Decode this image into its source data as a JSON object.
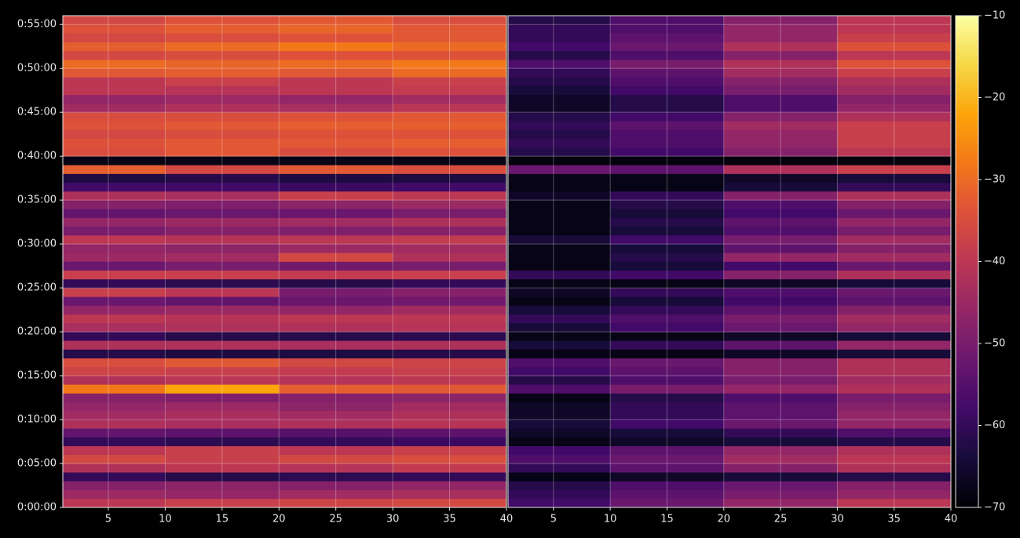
{
  "chart_data": {
    "type": "heatmap",
    "ylim": [
      0,
      3360
    ],
    "yticks": [
      {
        "value": 0,
        "label": "0:00:00"
      },
      {
        "value": 300,
        "label": "0:05:00"
      },
      {
        "value": 600,
        "label": "0:10:00"
      },
      {
        "value": 900,
        "label": "0:15:00"
      },
      {
        "value": 1200,
        "label": "0:20:00"
      },
      {
        "value": 1500,
        "label": "0:25:00"
      },
      {
        "value": 1800,
        "label": "0:30:00"
      },
      {
        "value": 2100,
        "label": "0:35:00"
      },
      {
        "value": 2400,
        "label": "0:40:00"
      },
      {
        "value": 2700,
        "label": "0:45:00"
      },
      {
        "value": 3000,
        "label": "0:50:00"
      },
      {
        "value": 3300,
        "label": "0:55:00"
      }
    ],
    "ybins": [
      0,
      60,
      120,
      180,
      240,
      300,
      360,
      420,
      480,
      540,
      600,
      660,
      720,
      780,
      840,
      900,
      960,
      1020,
      1080,
      1140,
      1200,
      1260,
      1320,
      1380,
      1440,
      1500,
      1560,
      1620,
      1680,
      1740,
      1800,
      1860,
      1920,
      1980,
      2040,
      2100,
      2160,
      2220,
      2280,
      2340,
      2400,
      2460,
      2520,
      2580,
      2640,
      2700,
      2760,
      2820,
      2880,
      2940,
      3000,
      3060,
      3120,
      3180,
      3240,
      3300,
      3360
    ],
    "grid": true,
    "colormap": "inferno",
    "colorbar": {
      "lim": [
        -70,
        -10
      ],
      "ticks": [
        {
          "value": -70,
          "label": "−70"
        },
        {
          "value": -60,
          "label": "−60"
        },
        {
          "value": -50,
          "label": "−50"
        },
        {
          "value": -40,
          "label": "−40"
        },
        {
          "value": -30,
          "label": "−30"
        },
        {
          "value": -20,
          "label": "−20"
        },
        {
          "value": -10,
          "label": "−10"
        }
      ]
    },
    "panels": [
      {
        "xlim": [
          1,
          40
        ],
        "xticks": [
          5,
          10,
          15,
          20,
          25,
          30,
          35,
          40
        ],
        "xbins": [
          1,
          10,
          20,
          30,
          40
        ],
        "values": [
          [
            -40,
            -38,
            -37,
            -36
          ],
          [
            -45,
            -46,
            -44,
            -43
          ],
          [
            -48,
            -47,
            -48,
            -46
          ],
          [
            -60,
            -62,
            -61,
            -60
          ],
          [
            -42,
            -40,
            -41,
            -39
          ],
          [
            -36,
            -38,
            -36,
            -35
          ],
          [
            -40,
            -38,
            -40,
            -38
          ],
          [
            -60,
            -61,
            -60,
            -59
          ],
          [
            -53,
            -54,
            -55,
            -54
          ],
          [
            -42,
            -43,
            -42,
            -41
          ],
          [
            -44,
            -43,
            -44,
            -42
          ],
          [
            -46,
            -45,
            -47,
            -44
          ],
          [
            -48,
            -49,
            -48,
            -47
          ],
          [
            -28,
            -22,
            -32,
            -33
          ],
          [
            -42,
            -40,
            -41,
            -40
          ],
          [
            -37,
            -38,
            -39,
            -38
          ],
          [
            -35,
            -33,
            -36,
            -37
          ],
          [
            -62,
            -63,
            -63,
            -62
          ],
          [
            -42,
            -42,
            -43,
            -42
          ],
          [
            -60,
            -62,
            -62,
            -61
          ],
          [
            -43,
            -42,
            -42,
            -41
          ],
          [
            -40,
            -41,
            -40,
            -40
          ],
          [
            -46,
            -45,
            -46,
            -44
          ],
          [
            -52,
            -53,
            -52,
            -51
          ],
          [
            -38,
            -40,
            -50,
            -48
          ],
          [
            -60,
            -61,
            -62,
            -60
          ],
          [
            -38,
            -38,
            -39,
            -38
          ],
          [
            -52,
            -50,
            -51,
            -50
          ],
          [
            -45,
            -44,
            -36,
            -42
          ],
          [
            -46,
            -47,
            -45,
            -44
          ],
          [
            -40,
            -41,
            -40,
            -39
          ],
          [
            -50,
            -48,
            -49,
            -48
          ],
          [
            -46,
            -45,
            -44,
            -42
          ],
          [
            -53,
            -52,
            -52,
            -50
          ],
          [
            -48,
            -49,
            -47,
            -45
          ],
          [
            -42,
            -43,
            -38,
            -40
          ],
          [
            -58,
            -58,
            -59,
            -58
          ],
          [
            -63,
            -62,
            -63,
            -63
          ],
          [
            -32,
            -36,
            -33,
            -35
          ],
          [
            -68,
            -68,
            -68,
            -68
          ],
          [
            -35,
            -33,
            -35,
            -34
          ],
          [
            -34,
            -33,
            -33,
            -32
          ],
          [
            -36,
            -35,
            -34,
            -34
          ],
          [
            -34,
            -33,
            -32,
            -32
          ],
          [
            -35,
            -35,
            -34,
            -33
          ],
          [
            -44,
            -42,
            -43,
            -40
          ],
          [
            -46,
            -45,
            -46,
            -44
          ],
          [
            -40,
            -41,
            -40,
            -39
          ],
          [
            -40,
            -38,
            -40,
            -38
          ],
          [
            -33,
            -32,
            -33,
            -30
          ],
          [
            -30,
            -31,
            -30,
            -28
          ],
          [
            -36,
            -35,
            -34,
            -34
          ],
          [
            -32,
            -30,
            -28,
            -30
          ],
          [
            -36,
            -35,
            -34,
            -33
          ],
          [
            -34,
            -32,
            -31,
            -33
          ],
          [
            -36,
            -34,
            -33,
            -35
          ]
        ]
      },
      {
        "xlim": [
          1,
          40
        ],
        "xticks": [
          5,
          10,
          15,
          20,
          25,
          30,
          35,
          40
        ],
        "xbins": [
          1,
          10,
          20,
          30,
          40
        ],
        "values": [
          [
            -58,
            -52,
            -46,
            -40
          ],
          [
            -60,
            -54,
            -50,
            -46
          ],
          [
            -62,
            -56,
            -52,
            -48
          ],
          [
            -68,
            -66,
            -64,
            -62
          ],
          [
            -60,
            -54,
            -48,
            -42
          ],
          [
            -56,
            -52,
            -44,
            -40
          ],
          [
            -58,
            -54,
            -46,
            -42
          ],
          [
            -68,
            -66,
            -64,
            -62
          ],
          [
            -66,
            -64,
            -60,
            -56
          ],
          [
            -64,
            -58,
            -52,
            -46
          ],
          [
            -66,
            -60,
            -54,
            -46
          ],
          [
            -66,
            -60,
            -54,
            -48
          ],
          [
            -68,
            -62,
            -56,
            -50
          ],
          [
            -56,
            -50,
            -46,
            -42
          ],
          [
            -62,
            -56,
            -50,
            -44
          ],
          [
            -58,
            -54,
            -48,
            -42
          ],
          [
            -56,
            -52,
            -48,
            -42
          ],
          [
            -68,
            -68,
            -66,
            -64
          ],
          [
            -64,
            -60,
            -54,
            -46
          ],
          [
            -68,
            -68,
            -66,
            -64
          ],
          [
            -64,
            -58,
            -52,
            -46
          ],
          [
            -60,
            -56,
            -50,
            -44
          ],
          [
            -64,
            -60,
            -54,
            -48
          ],
          [
            -68,
            -64,
            -58,
            -54
          ],
          [
            -66,
            -60,
            -56,
            -52
          ],
          [
            -68,
            -68,
            -66,
            -64
          ],
          [
            -60,
            -58,
            -48,
            -42
          ],
          [
            -68,
            -64,
            -58,
            -52
          ],
          [
            -68,
            -62,
            -46,
            -44
          ],
          [
            -68,
            -64,
            -54,
            -48
          ],
          [
            -64,
            -58,
            -50,
            -44
          ],
          [
            -68,
            -64,
            -56,
            -50
          ],
          [
            -68,
            -62,
            -54,
            -46
          ],
          [
            -68,
            -64,
            -58,
            -52
          ],
          [
            -68,
            -62,
            -56,
            -48
          ],
          [
            -66,
            -60,
            -48,
            -42
          ],
          [
            -68,
            -68,
            -64,
            -60
          ],
          [
            -68,
            -68,
            -66,
            -64
          ],
          [
            -52,
            -54,
            -42,
            -38
          ],
          [
            -69,
            -69,
            -69,
            -69
          ],
          [
            -62,
            -58,
            -48,
            -40
          ],
          [
            -60,
            -56,
            -46,
            -38
          ],
          [
            -62,
            -56,
            -46,
            -38
          ],
          [
            -60,
            -54,
            -44,
            -38
          ],
          [
            -62,
            -58,
            -48,
            -42
          ],
          [
            -66,
            -62,
            -56,
            -46
          ],
          [
            -66,
            -62,
            -56,
            -48
          ],
          [
            -64,
            -58,
            -50,
            -44
          ],
          [
            -62,
            -56,
            -48,
            -42
          ],
          [
            -60,
            -54,
            -44,
            -38
          ],
          [
            -56,
            -50,
            -42,
            -34
          ],
          [
            -62,
            -56,
            -48,
            -40
          ],
          [
            -58,
            -52,
            -42,
            -34
          ],
          [
            -60,
            -54,
            -46,
            -38
          ],
          [
            -60,
            -56,
            -46,
            -40
          ],
          [
            -62,
            -56,
            -48,
            -40
          ]
        ]
      }
    ]
  }
}
